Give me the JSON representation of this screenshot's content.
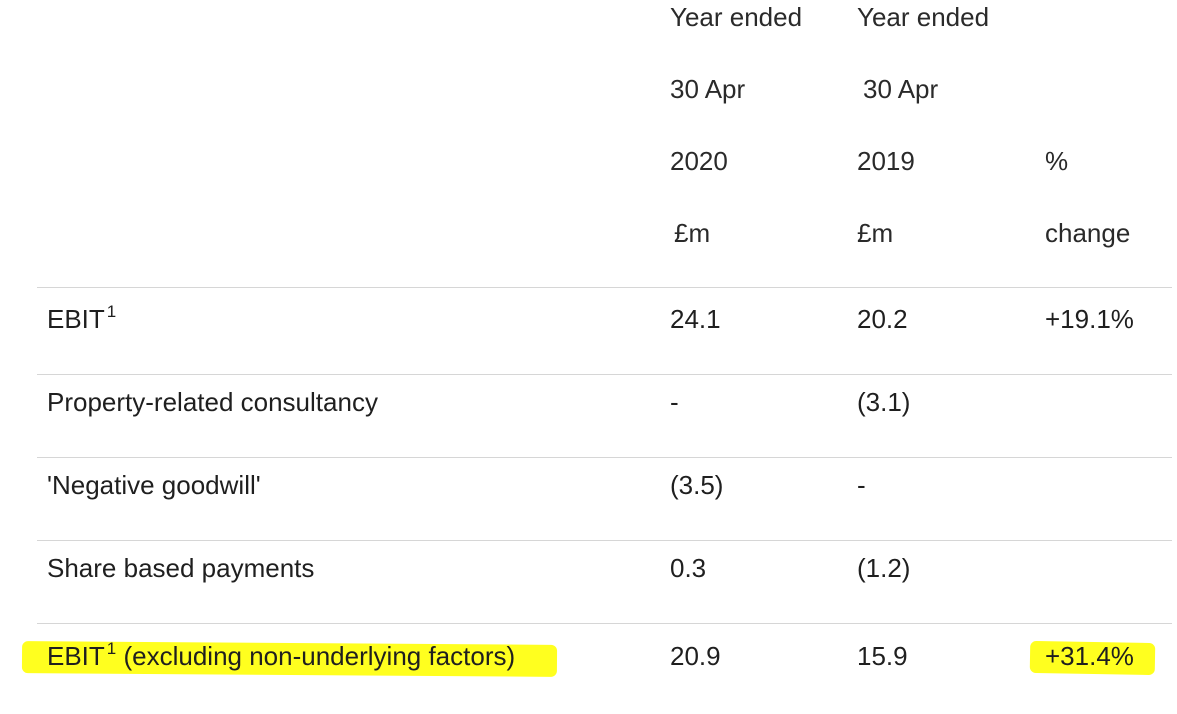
{
  "header": {
    "col_2020": {
      "line1": "Year ended",
      "line2": "30 Apr",
      "line3": "2020",
      "line4": "£m"
    },
    "col_2019": {
      "line1": "Year ended",
      "line2": "30 Apr",
      "line3": "2019",
      "line4": "£m"
    },
    "col_change": {
      "line3": "%",
      "line4": "change"
    }
  },
  "rows": [
    {
      "label": "EBIT",
      "sup": "1",
      "suffix": "",
      "v2020": "24.1",
      "v2019": "20.2",
      "change": "+19.1%"
    },
    {
      "label": "Property-related consultancy",
      "sup": "",
      "suffix": "",
      "v2020": "-",
      "v2019": "(3.1)",
      "change": ""
    },
    {
      "label": "'Negative goodwill'",
      "sup": "",
      "suffix": "",
      "v2020": "(3.5)",
      "v2019": "-",
      "change": ""
    },
    {
      "label": "Share based payments",
      "sup": "",
      "suffix": "",
      "v2020": "0.3",
      "v2019": "(1.2)",
      "change": ""
    },
    {
      "label": "EBIT",
      "sup": "1",
      "suffix": " (excluding non-underlying factors)",
      "v2020": "20.9",
      "v2019": "15.9",
      "change": "+31.4%"
    }
  ],
  "highlight_color": "#ffff1f"
}
